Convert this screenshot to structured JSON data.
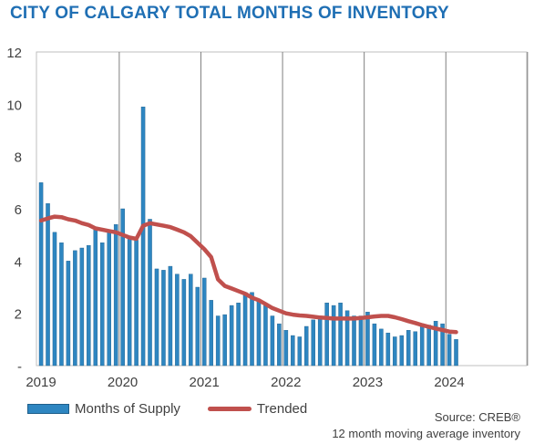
{
  "header": {
    "title": "CITY OF CALGARY TOTAL MONTHS OF INVENTORY"
  },
  "legend": {
    "bars_label": "Months of Supply",
    "line_label": "Trended"
  },
  "footer": {
    "source": "Source: CREB®",
    "note": "12 month moving average inventory"
  },
  "colors": {
    "title": "#1f6fb4",
    "bars": "#2e86c1",
    "bar_edge": "#1f5f8b",
    "trend": "#c0504d",
    "grid": "#7f7f7f"
  },
  "chart_data": {
    "type": "bar",
    "ylim": [
      0,
      12
    ],
    "yticks": [
      "-",
      "2",
      "4",
      "6",
      "8",
      "10",
      "12"
    ],
    "xticks": [
      "2019",
      "2020",
      "2021",
      "2022",
      "2023",
      "2024"
    ],
    "start": "2019-01",
    "grid": "vertical lines at each year",
    "legend_position": "bottom",
    "series": [
      {
        "name": "Months of Supply",
        "type": "bar",
        "values": [
          7.0,
          6.2,
          5.1,
          4.7,
          4.0,
          4.4,
          4.5,
          4.6,
          5.2,
          4.7,
          5.2,
          5.4,
          6.0,
          4.9,
          4.8,
          9.9,
          5.6,
          3.7,
          3.65,
          3.8,
          3.5,
          3.3,
          3.5,
          3.0,
          3.35,
          2.5,
          1.9,
          1.95,
          2.3,
          2.4,
          2.8,
          2.8,
          2.5,
          2.3,
          1.9,
          1.6,
          1.35,
          1.15,
          1.1,
          1.5,
          1.75,
          1.85,
          2.4,
          2.3,
          2.4,
          2.1,
          1.9,
          1.9,
          2.05,
          1.6,
          1.4,
          1.25,
          1.1,
          1.15,
          1.35,
          1.3,
          1.5,
          1.55,
          1.7,
          1.6,
          1.2,
          1.0
        ]
      },
      {
        "name": "Trended",
        "type": "line",
        "values": [
          5.55,
          5.63,
          5.7,
          5.68,
          5.6,
          5.55,
          5.45,
          5.38,
          5.25,
          5.2,
          5.15,
          5.1,
          5.0,
          4.9,
          4.85,
          5.35,
          5.45,
          5.4,
          5.35,
          5.3,
          5.2,
          5.1,
          4.95,
          4.7,
          4.45,
          4.15,
          3.3,
          3.05,
          2.95,
          2.85,
          2.75,
          2.6,
          2.5,
          2.35,
          2.2,
          2.1,
          2.0,
          1.95,
          1.92,
          1.9,
          1.87,
          1.84,
          1.82,
          1.8,
          1.8,
          1.8,
          1.8,
          1.82,
          1.85,
          1.88,
          1.9,
          1.9,
          1.85,
          1.78,
          1.7,
          1.63,
          1.55,
          1.48,
          1.42,
          1.36,
          1.3,
          1.28
        ]
      }
    ]
  }
}
